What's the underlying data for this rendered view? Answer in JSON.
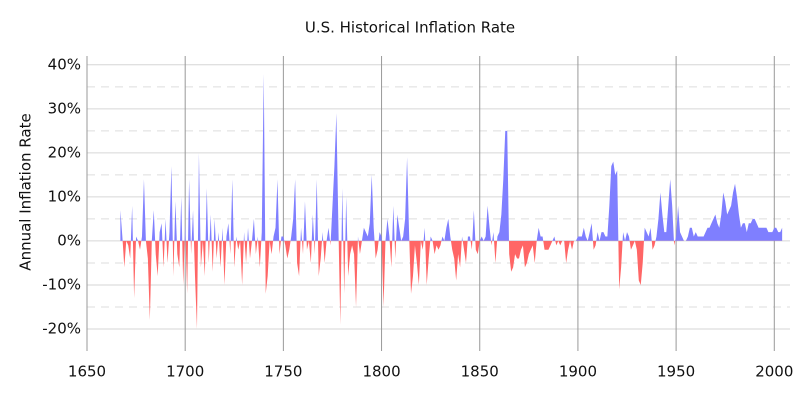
{
  "chart_data": {
    "type": "area",
    "title": "U.S. Historical Inflation Rate",
    "y_label": "Annual Inflation Rate",
    "x": [
      1667,
      1668,
      1669,
      1670,
      1671,
      1672,
      1673,
      1674,
      1675,
      1676,
      1677,
      1678,
      1679,
      1680,
      1681,
      1682,
      1683,
      1684,
      1685,
      1686,
      1687,
      1688,
      1689,
      1690,
      1691,
      1692,
      1693,
      1694,
      1695,
      1696,
      1697,
      1698,
      1699,
      1700,
      1701,
      1702,
      1703,
      1704,
      1705,
      1706,
      1707,
      1708,
      1709,
      1710,
      1711,
      1712,
      1713,
      1714,
      1715,
      1716,
      1717,
      1718,
      1719,
      1720,
      1721,
      1722,
      1723,
      1724,
      1725,
      1726,
      1727,
      1728,
      1729,
      1730,
      1731,
      1732,
      1733,
      1734,
      1735,
      1736,
      1737,
      1738,
      1739,
      1740,
      1741,
      1742,
      1743,
      1744,
      1745,
      1746,
      1747,
      1748,
      1749,
      1750,
      1751,
      1752,
      1753,
      1754,
      1755,
      1756,
      1757,
      1758,
      1759,
      1760,
      1761,
      1762,
      1763,
      1764,
      1765,
      1766,
      1767,
      1768,
      1769,
      1770,
      1771,
      1772,
      1773,
      1774,
      1775,
      1776,
      1777,
      1778,
      1779,
      1780,
      1781,
      1782,
      1783,
      1784,
      1785,
      1786,
      1787,
      1788,
      1789,
      1790,
      1791,
      1792,
      1793,
      1794,
      1795,
      1796,
      1797,
      1798,
      1799,
      1800,
      1801,
      1802,
      1803,
      1804,
      1805,
      1806,
      1807,
      1808,
      1809,
      1810,
      1811,
      1812,
      1813,
      1814,
      1815,
      1816,
      1817,
      1818,
      1819,
      1820,
      1821,
      1822,
      1823,
      1824,
      1825,
      1826,
      1827,
      1828,
      1829,
      1830,
      1831,
      1832,
      1833,
      1834,
      1835,
      1836,
      1837,
      1838,
      1839,
      1840,
      1841,
      1842,
      1843,
      1844,
      1845,
      1846,
      1847,
      1848,
      1849,
      1850,
      1851,
      1852,
      1853,
      1854,
      1855,
      1856,
      1857,
      1858,
      1859,
      1860,
      1861,
      1862,
      1863,
      1864,
      1865,
      1866,
      1867,
      1868,
      1869,
      1870,
      1871,
      1872,
      1873,
      1874,
      1875,
      1876,
      1877,
      1878,
      1879,
      1880,
      1881,
      1882,
      1883,
      1884,
      1885,
      1886,
      1887,
      1888,
      1889,
      1890,
      1891,
      1892,
      1893,
      1894,
      1895,
      1896,
      1897,
      1898,
      1899,
      1900,
      1901,
      1902,
      1903,
      1904,
      1905,
      1906,
      1907,
      1908,
      1909,
      1910,
      1911,
      1912,
      1913,
      1914,
      1915,
      1916,
      1917,
      1918,
      1919,
      1920,
      1921,
      1922,
      1923,
      1924,
      1925,
      1926,
      1927,
      1928,
      1929,
      1930,
      1931,
      1932,
      1933,
      1934,
      1935,
      1936,
      1937,
      1938,
      1939,
      1940,
      1941,
      1942,
      1943,
      1944,
      1945,
      1946,
      1947,
      1948,
      1949,
      1950,
      1951,
      1952,
      1953,
      1954,
      1955,
      1956,
      1957,
      1958,
      1959,
      1960,
      1961,
      1962,
      1963,
      1964,
      1965,
      1966,
      1967,
      1968,
      1969,
      1970,
      1971,
      1972,
      1973,
      1974,
      1975,
      1976,
      1977,
      1978,
      1979,
      1980,
      1981,
      1982,
      1983,
      1984,
      1985,
      1986,
      1987,
      1988,
      1989,
      1990,
      1991,
      1992,
      1993,
      1994,
      1995,
      1996,
      1997,
      1998,
      1999,
      2000,
      2001,
      2002,
      2003,
      2004
    ],
    "values": [
      7,
      1,
      -6,
      0,
      -1,
      -4,
      8,
      -13,
      1,
      0,
      -2,
      1,
      14,
      0,
      -4,
      -18,
      0,
      7,
      -3,
      -8,
      2,
      4,
      -6,
      5,
      -5,
      2,
      17,
      -8,
      9,
      -3,
      -6,
      10,
      -10,
      4,
      -12,
      14,
      -3,
      7,
      -8,
      -20,
      20,
      -6,
      0,
      -8,
      12,
      -5,
      6,
      -7,
      5,
      -4,
      2,
      -6,
      3,
      -10,
      1,
      4,
      -3,
      14,
      -6,
      1,
      -2,
      0,
      -10,
      2,
      -5,
      3,
      -4,
      0,
      5,
      -3,
      1,
      -6,
      2,
      38,
      -12,
      -8,
      0,
      -3,
      1,
      3,
      14,
      -3,
      1,
      1,
      -1,
      -4,
      -2,
      1,
      5,
      14,
      -5,
      -8,
      3,
      -3,
      9,
      -2,
      0,
      -5,
      6,
      -3,
      14,
      -8,
      -4,
      2,
      -5,
      0,
      3,
      -1,
      8,
      17,
      29,
      4,
      -19,
      12,
      -12,
      10,
      -8,
      -3,
      -1,
      -3,
      -15,
      1,
      -3,
      0,
      3,
      2,
      1,
      4,
      15,
      3,
      -4,
      -2,
      2,
      1,
      -15,
      0,
      5,
      1,
      -6,
      8,
      -4,
      6,
      3,
      0,
      1,
      5,
      19,
      2,
      -12,
      -8,
      -1,
      -5,
      -10,
      0,
      -2,
      3,
      -10,
      -4,
      1,
      0,
      -3,
      -1,
      -2,
      -1,
      1,
      0,
      3,
      5,
      1,
      -2,
      -4,
      -9,
      -3,
      -6,
      1,
      -2,
      -5,
      1,
      1,
      -2,
      7,
      -2,
      -3,
      0,
      1,
      0,
      1,
      8,
      3,
      -1,
      2,
      -5,
      1,
      2,
      6,
      14,
      25,
      25,
      -3,
      -7,
      -6,
      -3,
      -4,
      -4,
      -2,
      -1,
      -6,
      -5,
      -3,
      -2,
      -1,
      -5,
      0,
      3,
      1,
      1,
      -2,
      -2,
      -2,
      -1,
      0,
      1,
      -1,
      0,
      -1,
      0,
      0,
      -5,
      -2,
      0,
      -2,
      0,
      0,
      1,
      1,
      1,
      3,
      1,
      0,
      2,
      4,
      -2,
      -1,
      2,
      0,
      2,
      2,
      1,
      1,
      8,
      17,
      18,
      15,
      16,
      -11,
      -6,
      2,
      0,
      2,
      1,
      -2,
      -1,
      0,
      -2,
      -9,
      -10,
      -5,
      3,
      2,
      1,
      3,
      -2,
      -1,
      1,
      5,
      11,
      6,
      2,
      2,
      8,
      14,
      8,
      -1,
      1,
      8,
      2,
      1,
      0,
      0,
      1,
      3,
      3,
      1,
      2,
      1,
      1,
      1,
      1,
      2,
      3,
      3,
      4,
      5,
      6,
      4,
      3,
      6,
      11,
      9,
      6,
      7,
      8,
      11,
      13,
      10,
      6,
      3,
      4,
      4,
      2,
      4,
      4,
      5,
      5,
      4,
      3,
      3,
      3,
      3,
      3,
      2,
      2,
      2,
      3,
      3,
      2,
      2,
      3
    ],
    "positive_color": "#7f7fff",
    "negative_color": "#ff6666",
    "xlim": [
      1650,
      2008
    ],
    "xticks": [
      1650,
      1700,
      1750,
      1800,
      1850,
      1900,
      1950,
      2000
    ],
    "ylim": [
      -25,
      42
    ],
    "yticks": [
      {
        "value": -20,
        "label": "-20%"
      },
      {
        "value": -10,
        "label": "-10%"
      },
      {
        "value": 0,
        "label": "0%"
      },
      {
        "value": 10,
        "label": "10%"
      },
      {
        "value": 20,
        "label": "20%"
      },
      {
        "value": 30,
        "label": "30%"
      },
      {
        "value": 40,
        "label": "40%"
      }
    ],
    "yminor": [
      -15,
      -5,
      5,
      15,
      25,
      35
    ],
    "grid": true
  }
}
